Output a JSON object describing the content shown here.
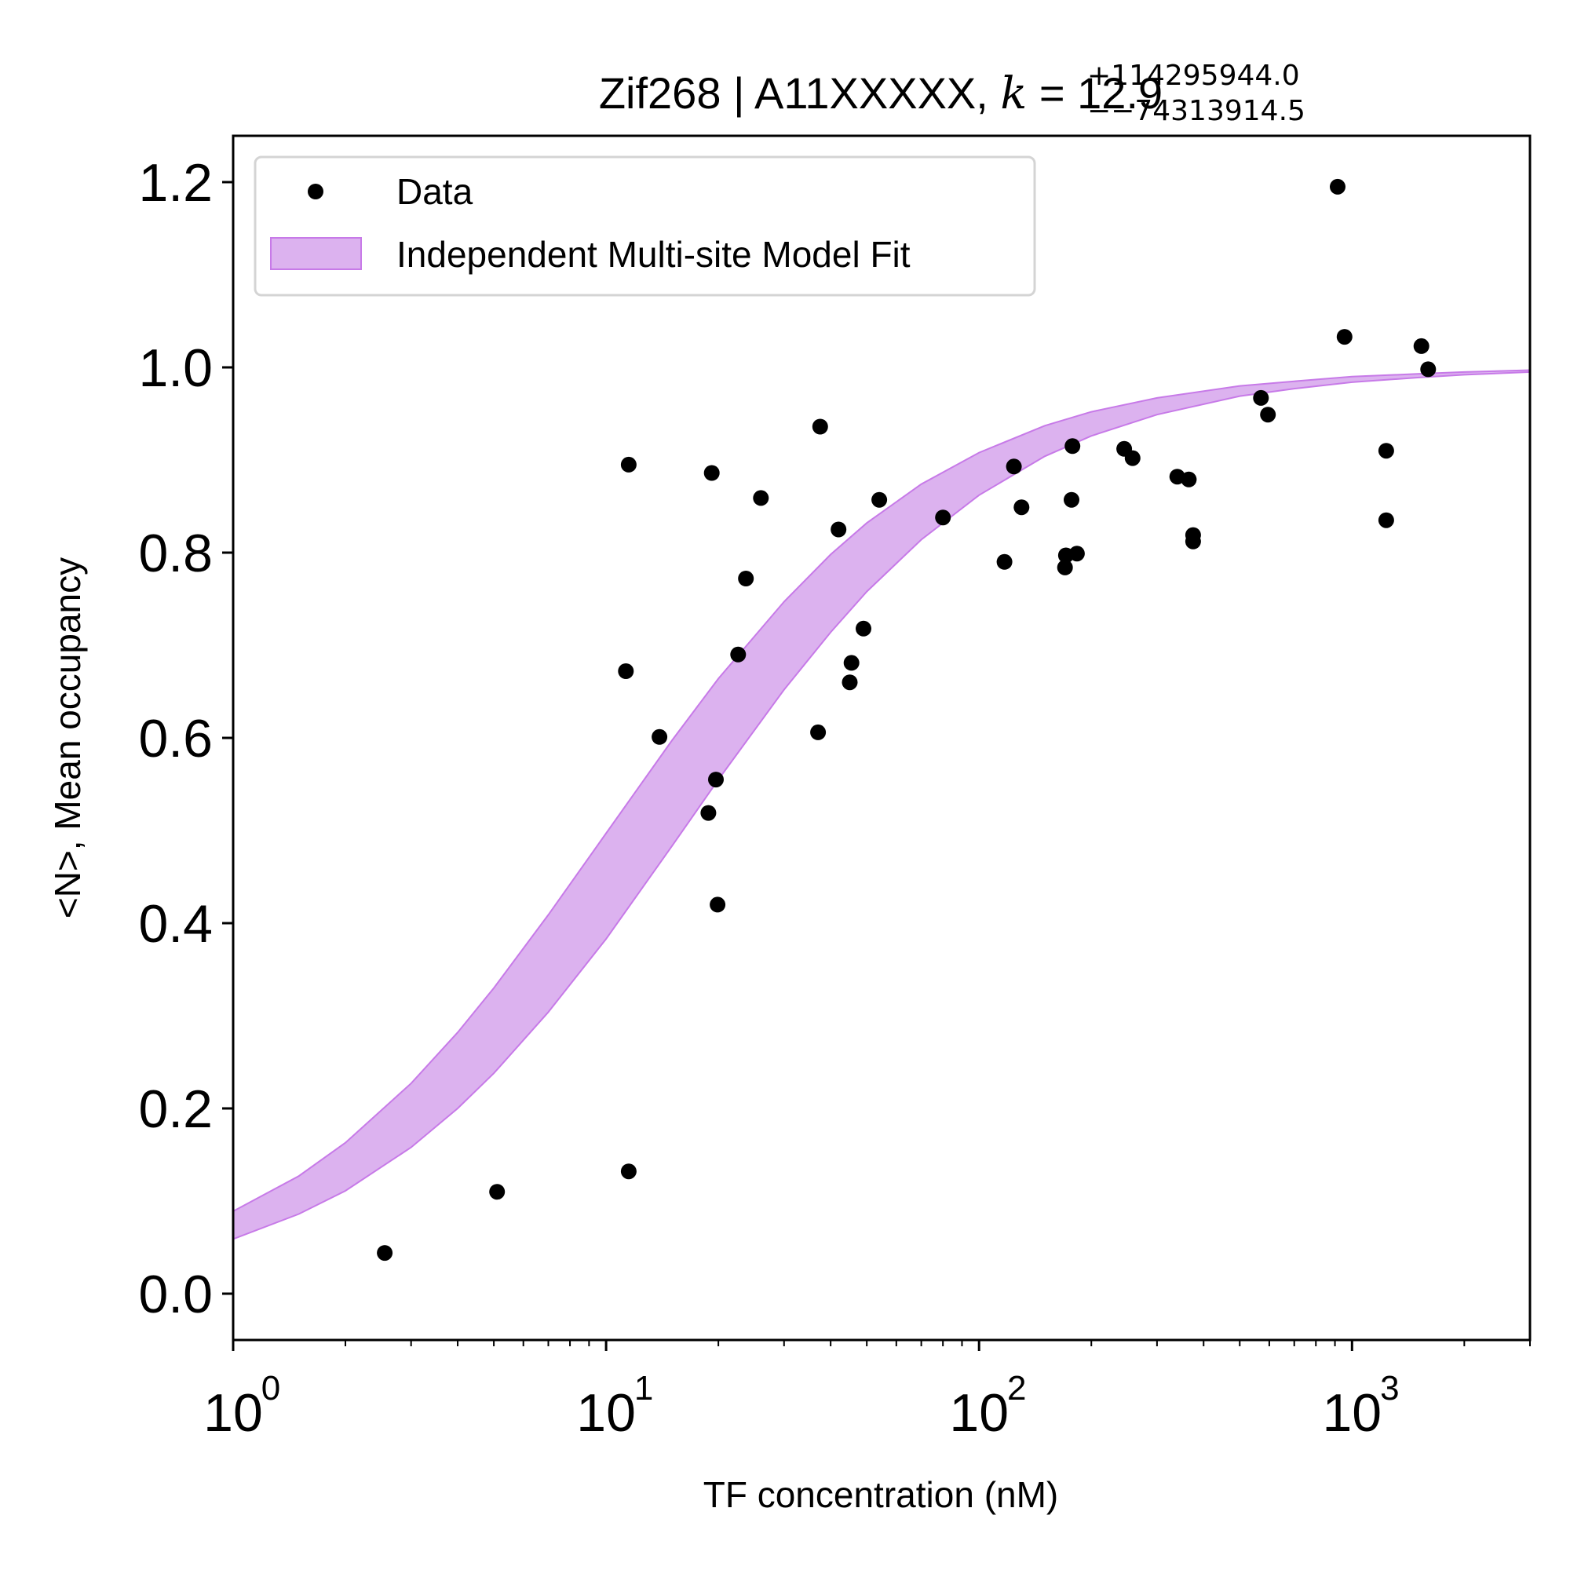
{
  "chart_data": {
    "type": "scatter",
    "title": {
      "main": "Zif268 | A11XXXXX, ",
      "k_symbol": "k",
      "k_eq": " = 12.9",
      "sup": "+114295944.0",
      "sub": "−−74313914.5"
    },
    "xlabel": "TF concentration (nM)",
    "ylabel": "<N>, Mean occupancy",
    "x_scale": "log",
    "xlim": [
      1,
      3000
    ],
    "ylim": [
      -0.05,
      1.25
    ],
    "grid": false,
    "legend_position": "top-left",
    "x_ticks": [
      {
        "base": "10",
        "exp": "0",
        "value": 1
      },
      {
        "base": "10",
        "exp": "1",
        "value": 10
      },
      {
        "base": "10",
        "exp": "2",
        "value": 100
      },
      {
        "base": "10",
        "exp": "3",
        "value": 1000
      }
    ],
    "y_ticks": [
      "0.0",
      "0.2",
      "0.4",
      "0.6",
      "0.8",
      "1.0",
      "1.2"
    ],
    "series": [
      {
        "name": "Data",
        "kind": "scatter",
        "color": "#000000",
        "points": [
          [
            2.55,
            0.044
          ],
          [
            5.1,
            0.11
          ],
          [
            11.5,
            0.132
          ],
          [
            11.3,
            0.672
          ],
          [
            11.5,
            0.895
          ],
          [
            13.9,
            0.601
          ],
          [
            18.8,
            0.519
          ],
          [
            19.2,
            0.886
          ],
          [
            19.7,
            0.555
          ],
          [
            19.9,
            0.42
          ],
          [
            22.6,
            0.69
          ],
          [
            23.7,
            0.772
          ],
          [
            26.0,
            0.859
          ],
          [
            37.0,
            0.606
          ],
          [
            37.5,
            0.936
          ],
          [
            42.0,
            0.825
          ],
          [
            45.0,
            0.66
          ],
          [
            45.5,
            0.681
          ],
          [
            49.0,
            0.718
          ],
          [
            54.0,
            0.857
          ],
          [
            80.0,
            0.838
          ],
          [
            117,
            0.79
          ],
          [
            124,
            0.893
          ],
          [
            130,
            0.849
          ],
          [
            170,
            0.784
          ],
          [
            171,
            0.797
          ],
          [
            177,
            0.857
          ],
          [
            178,
            0.915
          ],
          [
            183,
            0.799
          ],
          [
            245,
            0.912
          ],
          [
            258,
            0.902
          ],
          [
            340,
            0.882
          ],
          [
            365,
            0.879
          ],
          [
            375,
            0.819
          ],
          [
            375,
            0.812
          ],
          [
            570,
            0.967
          ],
          [
            595,
            0.949
          ],
          [
            915,
            1.195
          ],
          [
            955,
            1.033
          ],
          [
            1235,
            0.91
          ],
          [
            1235,
            0.835
          ],
          [
            1535,
            1.023
          ],
          [
            1600,
            0.998
          ]
        ]
      },
      {
        "name": "Independent Multi-site Model Fit",
        "kind": "band",
        "color": "#dcb2ef",
        "edge_color": "#c77ae8",
        "band": {
          "x": [
            1,
            1.5,
            2,
            3,
            4,
            5,
            7,
            10,
            15,
            20,
            30,
            40,
            50,
            70,
            100,
            150,
            200,
            300,
            500,
            700,
            1000,
            1500,
            2000,
            3000
          ],
          "upper": [
            0.089,
            0.127,
            0.163,
            0.227,
            0.282,
            0.33,
            0.409,
            0.497,
            0.597,
            0.664,
            0.747,
            0.798,
            0.832,
            0.874,
            0.908,
            0.937,
            0.952,
            0.967,
            0.98,
            0.985,
            0.99,
            0.993,
            0.995,
            0.997
          ],
          "lower": [
            0.059,
            0.086,
            0.111,
            0.158,
            0.2,
            0.238,
            0.304,
            0.383,
            0.483,
            0.555,
            0.652,
            0.714,
            0.758,
            0.814,
            0.862,
            0.904,
            0.926,
            0.949,
            0.969,
            0.977,
            0.984,
            0.989,
            0.992,
            0.995
          ]
        }
      }
    ]
  }
}
